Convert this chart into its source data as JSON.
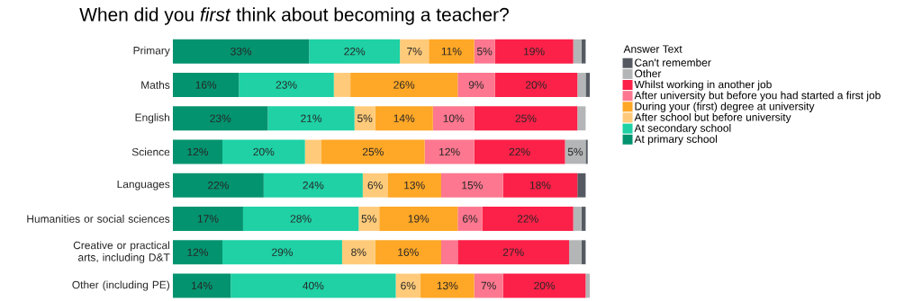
{
  "chart_data": {
    "type": "bar",
    "orientation": "horizontal",
    "stacked": true,
    "title": "When did you *first* think about becoming a teacher?",
    "legend_title": "Answer Text",
    "categories": [
      "Primary",
      "Maths",
      "English",
      "Science",
      "Languages",
      "Humanities or social sciences",
      "Creative or practical arts, including D&T",
      "Other (including PE)"
    ],
    "series": [
      {
        "name": "At primary school",
        "color": "#04936f",
        "values": [
          33,
          16,
          23,
          12,
          22,
          17,
          12,
          14
        ],
        "value_labels": [
          "33%",
          "16%",
          "23%",
          "12%",
          "22%",
          "17%",
          "12%",
          "14%"
        ]
      },
      {
        "name": "At secondary school",
        "color": "#1fd1a5",
        "values": [
          22,
          23,
          21,
          20,
          24,
          28,
          29,
          40
        ],
        "value_labels": [
          "22%",
          "23%",
          "21%",
          "20%",
          "24%",
          "28%",
          "29%",
          "40%"
        ]
      },
      {
        "name": "After school but before university",
        "color": "#ffcb7a",
        "values": [
          7,
          4,
          5,
          4,
          6,
          5,
          8,
          6
        ],
        "value_labels": [
          "7%",
          null,
          "5%",
          null,
          "6%",
          "5%",
          "8%",
          "6%"
        ]
      },
      {
        "name": "During your (first) degree at university",
        "color": "#ffa726",
        "values": [
          11,
          26,
          14,
          25,
          13,
          19,
          16,
          13
        ],
        "value_labels": [
          "11%",
          "26%",
          "14%",
          "25%",
          "13%",
          "19%",
          "16%",
          "13%"
        ]
      },
      {
        "name": "After university but before you had started a first job",
        "color": "#fc778f",
        "values": [
          5,
          9,
          10,
          12,
          15,
          6,
          4,
          7
        ],
        "value_labels": [
          "5%",
          "9%",
          "10%",
          "12%",
          "15%",
          "6%",
          null,
          "7%"
        ]
      },
      {
        "name": "Whilst working in another job",
        "color": "#fc2148",
        "values": [
          19,
          20,
          25,
          22,
          18,
          22,
          27,
          20
        ],
        "value_labels": [
          "19%",
          "20%",
          "25%",
          "22%",
          "18%",
          "22%",
          "27%",
          "20%"
        ]
      },
      {
        "name": "Other",
        "color": "#b3b5b6",
        "values": [
          2,
          2,
          2,
          5,
          0,
          2,
          3,
          1
        ],
        "value_labels": [
          null,
          null,
          null,
          "5%",
          null,
          null,
          null,
          null
        ]
      },
      {
        "name": "Can't remember",
        "color": "#555a62",
        "values": [
          1,
          1,
          0,
          0.5,
          2,
          1,
          1,
          0
        ],
        "value_labels": [
          null,
          null,
          null,
          null,
          null,
          null,
          null,
          null
        ]
      }
    ],
    "legend": "right",
    "tick_labels": "y"
  }
}
